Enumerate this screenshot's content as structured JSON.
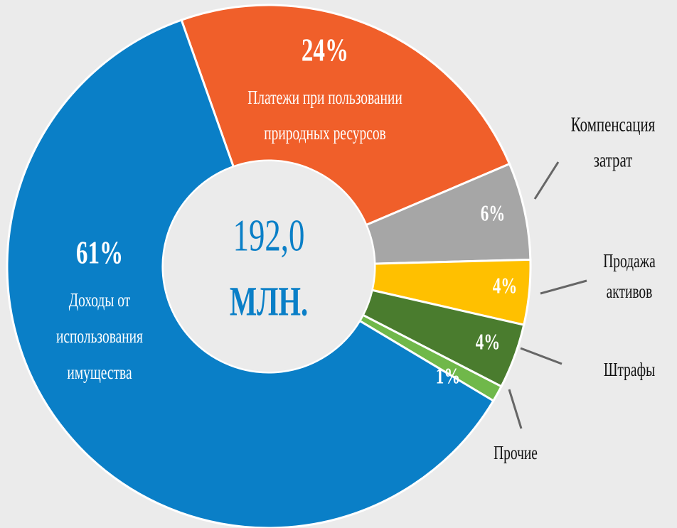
{
  "chart_data": {
    "type": "donut",
    "center_text": [
      "192,0",
      "МЛН."
    ],
    "categories": [
      [
        "Платежи при пользовании",
        "природных ресурсов"
      ],
      [
        "Компенсация",
        "затрат"
      ],
      [
        "Продажа",
        "активов"
      ],
      [
        "Штрафы"
      ],
      [
        "Прочие"
      ],
      [
        "Доходы от",
        "использования",
        "имущества"
      ]
    ],
    "values": [
      24,
      6,
      4,
      4,
      1,
      61
    ],
    "value_labels": [
      "24%",
      "6%",
      "4%",
      "4%",
      "1%",
      "61%"
    ],
    "colors": [
      "#f05f2a",
      "#a6a6a6",
      "#ffc000",
      "#4a7c2e",
      "#70b84a",
      "#0a7fc7"
    ],
    "center_color": "#0a7fc7"
  }
}
